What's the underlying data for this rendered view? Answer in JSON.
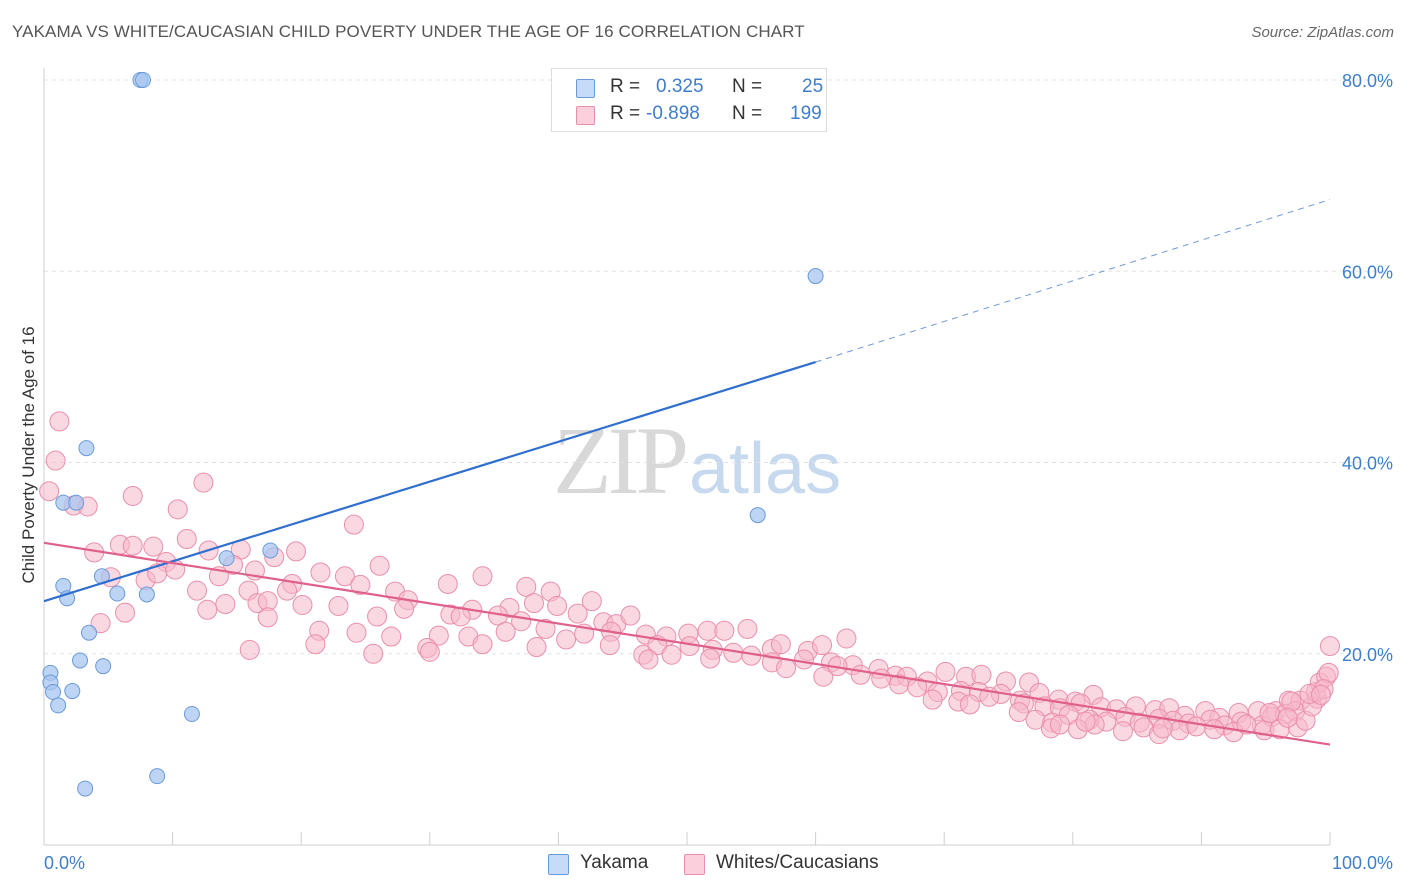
{
  "header": {
    "title": "YAKAMA VS WHITE/CAUCASIAN CHILD POVERTY UNDER THE AGE OF 16 CORRELATION CHART",
    "source": "Source: ZipAtlas.com"
  },
  "watermark": {
    "zip": "ZIP",
    "atlas": "atlas"
  },
  "legend": {
    "rows": [
      {
        "r_label": "R =",
        "r_value": "0.325",
        "n_label": "N =",
        "n_value": "25",
        "color": "#a8c6f0"
      },
      {
        "r_label": "R =",
        "r_value": "-0.898",
        "n_label": "N =",
        "n_value": "199",
        "color": "#f5b8cb"
      }
    ]
  },
  "bottom_legend": [
    {
      "label": "Yakama",
      "color": "#c5dbf7"
    },
    {
      "label": "Whites/Caucasians",
      "color": "#fbd0dc"
    }
  ],
  "chart_data": {
    "type": "scatter",
    "title": "YAKAMA VS WHITE/CAUCASIAN CHILD POVERTY UNDER THE AGE OF 16 CORRELATION CHART",
    "xlabel": "",
    "ylabel": "Child Poverty Under the Age of 16",
    "xlim": [
      0,
      100
    ],
    "ylim": [
      0,
      80
    ],
    "x_tick_labels": [
      "0.0%",
      "100.0%"
    ],
    "y_ticks": [
      20,
      40,
      60,
      80
    ],
    "y_tick_labels": [
      "20.0%",
      "40.0%",
      "60.0%",
      "80.0%"
    ],
    "grid": true,
    "legend_position": "top-center",
    "colors": {
      "yakama_fill": "#a8c6f0",
      "yakama_edge": "#6a9bd8",
      "yakama_line": "#2f6fcf",
      "white_fill": "#f5b8cb",
      "white_edge": "#ea8fab",
      "white_line": "#e0608c",
      "tick_label": "#3f7ec9"
    },
    "series": [
      {
        "name": "Yakama",
        "trend": {
          "x0": 0,
          "y0": 25.5,
          "x1": 60,
          "y1": 50.5,
          "dashed_to_x": 100,
          "dashed_to_y": 67.5
        },
        "points": [
          [
            7.5,
            80
          ],
          [
            7.7,
            80
          ],
          [
            60,
            59.5
          ],
          [
            3.3,
            41.5
          ],
          [
            55.5,
            34.5
          ],
          [
            1.5,
            35.8
          ],
          [
            2.5,
            35.8
          ],
          [
            1.5,
            27.1
          ],
          [
            1.8,
            25.8
          ],
          [
            4.5,
            28.1
          ],
          [
            5.7,
            26.3
          ],
          [
            8.0,
            26.2
          ],
          [
            14.2,
            30.0
          ],
          [
            17.6,
            30.8
          ],
          [
            3.5,
            22.2
          ],
          [
            0.5,
            18.0
          ],
          [
            2.8,
            19.3
          ],
          [
            4.6,
            18.7
          ],
          [
            0.5,
            17.0
          ],
          [
            0.7,
            16.0
          ],
          [
            2.2,
            16.1
          ],
          [
            1.1,
            14.6
          ],
          [
            11.5,
            13.7
          ],
          [
            8.8,
            7.2
          ],
          [
            3.2,
            5.9
          ]
        ]
      },
      {
        "name": "Whites/Caucasians",
        "trend": {
          "x0": 0,
          "y0": 31.6,
          "x1": 100,
          "y1": 10.5
        },
        "points": [
          [
            1.2,
            44.3
          ],
          [
            0.9,
            40.2
          ],
          [
            0.4,
            37.0
          ],
          [
            2.3,
            35.5
          ],
          [
            3.4,
            35.4
          ],
          [
            6.9,
            36.5
          ],
          [
            12.4,
            37.9
          ],
          [
            10.4,
            35.1
          ],
          [
            24.1,
            33.5
          ],
          [
            3.9,
            30.6
          ],
          [
            5.9,
            31.4
          ],
          [
            6.9,
            31.3
          ],
          [
            8.5,
            31.2
          ],
          [
            11.1,
            32.0
          ],
          [
            12.8,
            30.8
          ],
          [
            15.3,
            30.9
          ],
          [
            17.9,
            30.1
          ],
          [
            19.6,
            30.7
          ],
          [
            9.5,
            29.6
          ],
          [
            14.7,
            29.3
          ],
          [
            16.4,
            28.7
          ],
          [
            26.1,
            29.2
          ],
          [
            5.2,
            28.0
          ],
          [
            7.9,
            27.7
          ],
          [
            8.8,
            28.4
          ],
          [
            10.2,
            28.8
          ],
          [
            13.6,
            28.1
          ],
          [
            19.3,
            27.3
          ],
          [
            21.5,
            28.5
          ],
          [
            23.4,
            28.1
          ],
          [
            24.6,
            27.2
          ],
          [
            27.3,
            26.5
          ],
          [
            31.4,
            27.3
          ],
          [
            34.1,
            28.1
          ],
          [
            37.5,
            27.0
          ],
          [
            39.4,
            26.5
          ],
          [
            11.9,
            26.6
          ],
          [
            15.9,
            26.6
          ],
          [
            18.9,
            26.6
          ],
          [
            14.1,
            25.2
          ],
          [
            16.6,
            25.3
          ],
          [
            17.4,
            25.5
          ],
          [
            20.1,
            25.1
          ],
          [
            22.9,
            25.0
          ],
          [
            28.3,
            25.6
          ],
          [
            31.6,
            24.1
          ],
          [
            33.3,
            24.6
          ],
          [
            36.2,
            24.8
          ],
          [
            38.1,
            25.3
          ],
          [
            39.9,
            25.0
          ],
          [
            42.6,
            25.5
          ],
          [
            6.3,
            24.3
          ],
          [
            12.7,
            24.6
          ],
          [
            17.4,
            23.8
          ],
          [
            25.9,
            23.9
          ],
          [
            28.0,
            24.7
          ],
          [
            32.4,
            23.9
          ],
          [
            35.3,
            24.0
          ],
          [
            37.1,
            23.4
          ],
          [
            41.5,
            24.2
          ],
          [
            43.5,
            23.3
          ],
          [
            44.5,
            23.1
          ],
          [
            45.6,
            24.0
          ],
          [
            4.4,
            23.2
          ],
          [
            21.4,
            22.4
          ],
          [
            24.3,
            22.2
          ],
          [
            27.0,
            21.8
          ],
          [
            30.7,
            21.9
          ],
          [
            33.0,
            21.8
          ],
          [
            35.9,
            22.3
          ],
          [
            39.0,
            22.6
          ],
          [
            42.0,
            22.1
          ],
          [
            44.1,
            22.3
          ],
          [
            46.8,
            22.0
          ],
          [
            48.4,
            21.8
          ],
          [
            50.1,
            22.1
          ],
          [
            51.6,
            22.4
          ],
          [
            52.9,
            22.4
          ],
          [
            54.7,
            22.6
          ],
          [
            21.1,
            21.0
          ],
          [
            29.8,
            20.6
          ],
          [
            34.1,
            21.0
          ],
          [
            38.3,
            20.7
          ],
          [
            40.6,
            21.5
          ],
          [
            44.0,
            20.9
          ],
          [
            46.6,
            19.9
          ],
          [
            47.7,
            20.9
          ],
          [
            48.8,
            19.9
          ],
          [
            50.2,
            20.8
          ],
          [
            52.0,
            20.4
          ],
          [
            53.6,
            20.1
          ],
          [
            55.0,
            19.8
          ],
          [
            56.6,
            20.5
          ],
          [
            57.3,
            21.0
          ],
          [
            59.4,
            20.3
          ],
          [
            60.5,
            20.9
          ],
          [
            62.4,
            21.6
          ],
          [
            16.0,
            20.4
          ],
          [
            25.6,
            20.0
          ],
          [
            30.0,
            20.2
          ],
          [
            47.0,
            19.4
          ],
          [
            51.8,
            19.5
          ],
          [
            56.6,
            19.1
          ],
          [
            59.1,
            19.4
          ],
          [
            61.2,
            19.1
          ],
          [
            62.9,
            18.8
          ],
          [
            64.9,
            18.4
          ],
          [
            66.2,
            17.7
          ],
          [
            57.7,
            18.5
          ],
          [
            60.6,
            17.6
          ],
          [
            61.7,
            18.7
          ],
          [
            63.5,
            17.8
          ],
          [
            65.1,
            17.4
          ],
          [
            67.1,
            17.6
          ],
          [
            68.7,
            17.1
          ],
          [
            70.1,
            18.1
          ],
          [
            71.7,
            17.6
          ],
          [
            72.9,
            17.8
          ],
          [
            74.8,
            17.1
          ],
          [
            76.6,
            17.0
          ],
          [
            66.5,
            16.8
          ],
          [
            67.9,
            16.5
          ],
          [
            69.5,
            16.0
          ],
          [
            71.3,
            16.1
          ],
          [
            72.7,
            16.0
          ],
          [
            74.4,
            15.8
          ],
          [
            75.9,
            15.1
          ],
          [
            77.4,
            15.9
          ],
          [
            78.9,
            15.2
          ],
          [
            80.2,
            15.0
          ],
          [
            81.6,
            15.7
          ],
          [
            69.1,
            15.2
          ],
          [
            71.1,
            15.0
          ],
          [
            72.0,
            14.7
          ],
          [
            73.5,
            15.5
          ],
          [
            76.2,
            14.8
          ],
          [
            77.8,
            14.5
          ],
          [
            79.0,
            14.3
          ],
          [
            80.6,
            14.8
          ],
          [
            82.2,
            14.4
          ],
          [
            83.4,
            14.2
          ],
          [
            84.9,
            14.5
          ],
          [
            86.4,
            14.1
          ],
          [
            87.5,
            14.3
          ],
          [
            88.7,
            13.5
          ],
          [
            90.3,
            14.0
          ],
          [
            91.4,
            13.3
          ],
          [
            92.9,
            13.8
          ],
          [
            94.4,
            14.0
          ],
          [
            95.8,
            14.0
          ],
          [
            96.8,
            15.1
          ],
          [
            97.7,
            15.1
          ],
          [
            99.0,
            15.3
          ],
          [
            75.8,
            13.9
          ],
          [
            77.1,
            13.1
          ],
          [
            78.4,
            12.8
          ],
          [
            79.7,
            13.6
          ],
          [
            81.3,
            13.1
          ],
          [
            82.6,
            12.9
          ],
          [
            84.1,
            13.4
          ],
          [
            85.2,
            12.8
          ],
          [
            86.7,
            13.2
          ],
          [
            87.8,
            13.0
          ],
          [
            89.0,
            12.7
          ],
          [
            90.7,
            13.1
          ],
          [
            91.8,
            12.5
          ],
          [
            93.1,
            12.9
          ],
          [
            94.7,
            12.5
          ],
          [
            95.5,
            13.4
          ],
          [
            96.5,
            13.7
          ],
          [
            97.3,
            14.0
          ],
          [
            78.3,
            12.2
          ],
          [
            80.4,
            12.1
          ],
          [
            81.7,
            12.6
          ],
          [
            83.9,
            11.9
          ],
          [
            85.5,
            12.3
          ],
          [
            86.7,
            11.6
          ],
          [
            88.3,
            12.0
          ],
          [
            89.6,
            12.4
          ],
          [
            91.0,
            12.1
          ],
          [
            92.5,
            11.8
          ],
          [
            93.5,
            12.6
          ],
          [
            94.9,
            12.0
          ],
          [
            96.1,
            12.1
          ],
          [
            97.5,
            12.3
          ],
          [
            79.0,
            12.6
          ],
          [
            81.0,
            12.9
          ],
          [
            87.0,
            12.2
          ],
          [
            98.1,
            13.0
          ],
          [
            98.6,
            14.5
          ],
          [
            98.9,
            16.0
          ],
          [
            99.2,
            17.0
          ],
          [
            99.7,
            17.6
          ],
          [
            99.9,
            18.0
          ],
          [
            99.5,
            16.3
          ],
          [
            98.4,
            15.8
          ],
          [
            97.0,
            15.0
          ],
          [
            99.3,
            15.7
          ],
          [
            96.7,
            13.3
          ],
          [
            95.3,
            13.8
          ],
          [
            100,
            20.8
          ]
        ]
      }
    ]
  }
}
